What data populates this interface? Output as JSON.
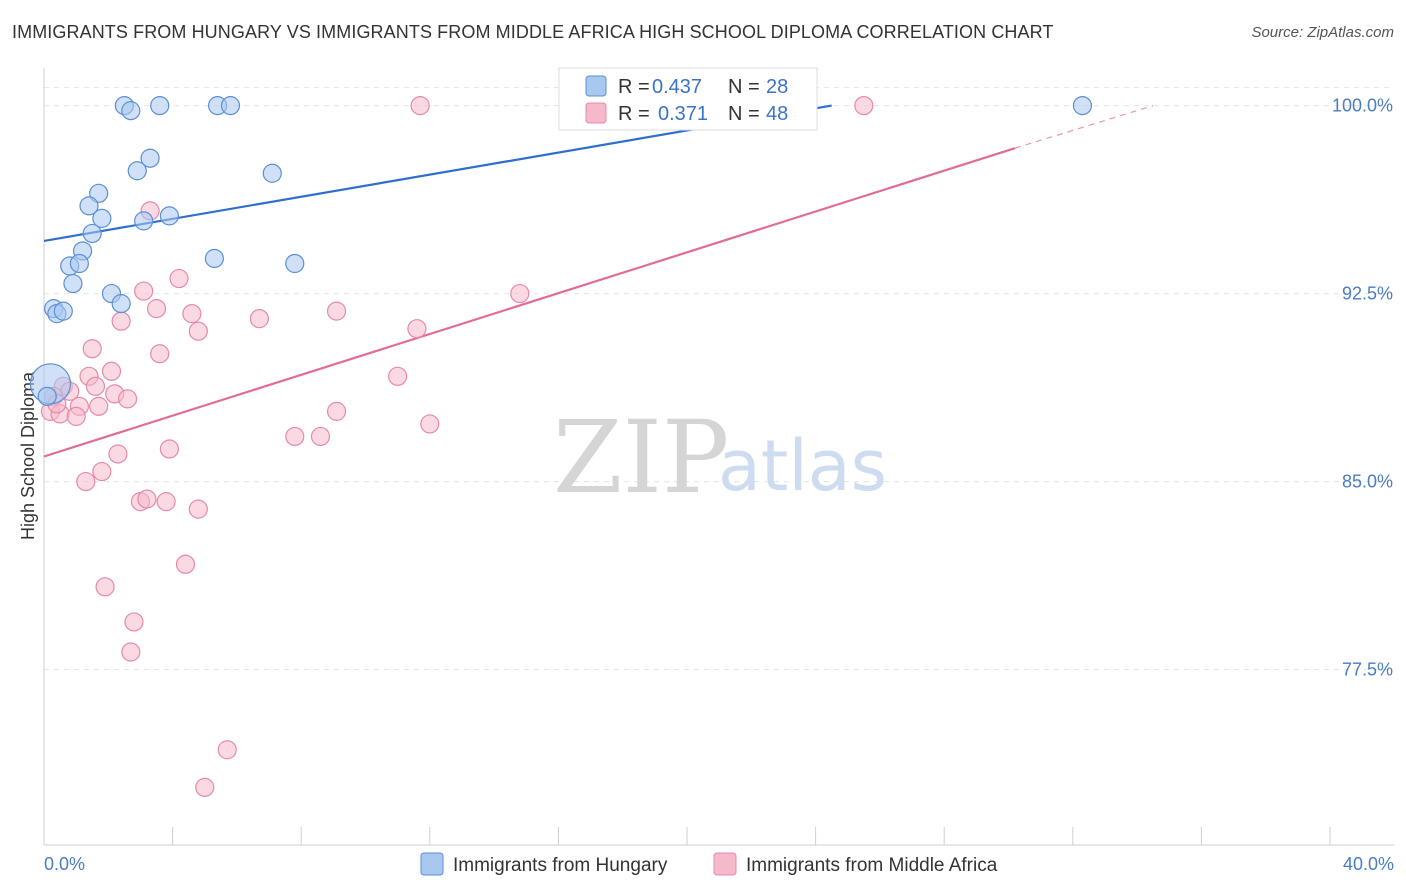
{
  "header": {
    "title": "IMMIGRANTS FROM HUNGARY VS IMMIGRANTS FROM MIDDLE AFRICA HIGH SCHOOL DIPLOMA CORRELATION CHART",
    "source": "Source: ZipAtlas.com"
  },
  "watermark": {
    "zip": "ZIP",
    "atlas": "atlas"
  },
  "legend": {
    "rows": [
      {
        "r_label": "R =",
        "r_value": "0.437",
        "n_label": "N =",
        "n_value": "28"
      },
      {
        "r_label": "R =",
        "r_value": "0.371",
        "n_label": "N =",
        "n_value": "48"
      }
    ]
  },
  "bottom_legend": {
    "hungary": "Immigrants from Hungary",
    "middle_africa": "Immigrants from Middle Africa"
  },
  "chart_data": {
    "type": "scatter",
    "title": "IMMIGRANTS FROM HUNGARY VS IMMIGRANTS FROM MIDDLE AFRICA HIGH SCHOOL DIPLOMA CORRELATION CHART",
    "xlabel": "",
    "ylabel": "High School Diploma",
    "xlim": [
      0,
      40
    ],
    "ylim": [
      70.5,
      101.5
    ],
    "x_tick_labels": [
      "0.0%",
      "40.0%"
    ],
    "y_ticks": [
      77.5,
      85.0,
      92.5,
      100.0
    ],
    "y_tick_labels": [
      "77.5%",
      "85.0%",
      "92.5%",
      "100.0%"
    ],
    "grid": true,
    "colors": {
      "hungary_fill": "#a9c8f0",
      "hungary_stroke": "#5b8fd6",
      "hungary_line": "#2f6fcc",
      "africa_fill": "#f6b9cc",
      "africa_stroke": "#e58aa8",
      "africa_line": "#e06c97"
    },
    "series": [
      {
        "name": "Immigrants from Hungary",
        "r": 0.437,
        "n": 28,
        "trend": {
          "x": [
            0,
            24.5
          ],
          "y": [
            94.6,
            100.0
          ]
        },
        "points": [
          {
            "x": 0.2,
            "y": 88.9,
            "big": true
          },
          {
            "x": 2.5,
            "y": 100.0
          },
          {
            "x": 2.7,
            "y": 99.8
          },
          {
            "x": 3.6,
            "y": 100.0
          },
          {
            "x": 5.4,
            "y": 100.0
          },
          {
            "x": 5.8,
            "y": 100.0
          },
          {
            "x": 32.3,
            "y": 100.0
          },
          {
            "x": 3.3,
            "y": 97.9
          },
          {
            "x": 2.9,
            "y": 97.4
          },
          {
            "x": 7.1,
            "y": 97.3
          },
          {
            "x": 1.7,
            "y": 96.5
          },
          {
            "x": 1.4,
            "y": 96.0
          },
          {
            "x": 1.8,
            "y": 95.5
          },
          {
            "x": 3.1,
            "y": 95.4
          },
          {
            "x": 3.9,
            "y": 95.6
          },
          {
            "x": 1.5,
            "y": 94.9
          },
          {
            "x": 1.2,
            "y": 94.2
          },
          {
            "x": 0.8,
            "y": 93.6
          },
          {
            "x": 1.1,
            "y": 93.7
          },
          {
            "x": 5.3,
            "y": 93.9
          },
          {
            "x": 7.8,
            "y": 93.7
          },
          {
            "x": 0.9,
            "y": 92.9
          },
          {
            "x": 2.1,
            "y": 92.5
          },
          {
            "x": 2.4,
            "y": 92.1
          },
          {
            "x": 0.3,
            "y": 91.9
          },
          {
            "x": 0.4,
            "y": 91.7
          },
          {
            "x": 0.6,
            "y": 91.8
          },
          {
            "x": 0.1,
            "y": 88.4
          }
        ]
      },
      {
        "name": "Immigrants from Middle Africa",
        "r": 0.371,
        "n": 48,
        "trend": {
          "x": [
            0,
            30.2
          ],
          "y": [
            86.0,
            98.3
          ]
        },
        "trend_dashed": {
          "x": [
            30.2,
            34.5
          ],
          "y": [
            98.3,
            100.0
          ]
        },
        "points": [
          {
            "x": 11.7,
            "y": 100.0
          },
          {
            "x": 25.5,
            "y": 100.0
          },
          {
            "x": 3.3,
            "y": 95.8
          },
          {
            "x": 4.2,
            "y": 93.1
          },
          {
            "x": 3.1,
            "y": 92.6
          },
          {
            "x": 14.8,
            "y": 92.5
          },
          {
            "x": 3.5,
            "y": 91.9
          },
          {
            "x": 4.6,
            "y": 91.7
          },
          {
            "x": 6.7,
            "y": 91.5
          },
          {
            "x": 9.1,
            "y": 91.8
          },
          {
            "x": 2.4,
            "y": 91.4
          },
          {
            "x": 4.8,
            "y": 91.0
          },
          {
            "x": 11.6,
            "y": 91.1
          },
          {
            "x": 1.5,
            "y": 90.3
          },
          {
            "x": 3.6,
            "y": 90.1
          },
          {
            "x": 2.1,
            "y": 89.4
          },
          {
            "x": 1.4,
            "y": 89.2
          },
          {
            "x": 11.0,
            "y": 89.2
          },
          {
            "x": 0.6,
            "y": 88.8
          },
          {
            "x": 0.8,
            "y": 88.6
          },
          {
            "x": 2.2,
            "y": 88.5
          },
          {
            "x": 2.6,
            "y": 88.3
          },
          {
            "x": 0.3,
            "y": 88.4
          },
          {
            "x": 1.1,
            "y": 88.0
          },
          {
            "x": 1.7,
            "y": 88.0
          },
          {
            "x": 0.2,
            "y": 87.8
          },
          {
            "x": 0.5,
            "y": 87.7
          },
          {
            "x": 1.0,
            "y": 87.6
          },
          {
            "x": 9.1,
            "y": 87.8
          },
          {
            "x": 12.0,
            "y": 87.3
          },
          {
            "x": 7.8,
            "y": 86.8
          },
          {
            "x": 8.6,
            "y": 86.8
          },
          {
            "x": 3.9,
            "y": 86.3
          },
          {
            "x": 2.3,
            "y": 86.1
          },
          {
            "x": 1.8,
            "y": 85.4
          },
          {
            "x": 1.3,
            "y": 85.0
          },
          {
            "x": 3.0,
            "y": 84.2
          },
          {
            "x": 3.2,
            "y": 84.3
          },
          {
            "x": 3.8,
            "y": 84.2
          },
          {
            "x": 4.8,
            "y": 83.9
          },
          {
            "x": 4.4,
            "y": 81.7
          },
          {
            "x": 1.9,
            "y": 80.8
          },
          {
            "x": 2.8,
            "y": 79.4
          },
          {
            "x": 2.7,
            "y": 78.2
          },
          {
            "x": 5.7,
            "y": 74.3
          },
          {
            "x": 5.0,
            "y": 72.8
          },
          {
            "x": 0.4,
            "y": 88.1
          },
          {
            "x": 1.6,
            "y": 88.8
          }
        ]
      }
    ]
  }
}
